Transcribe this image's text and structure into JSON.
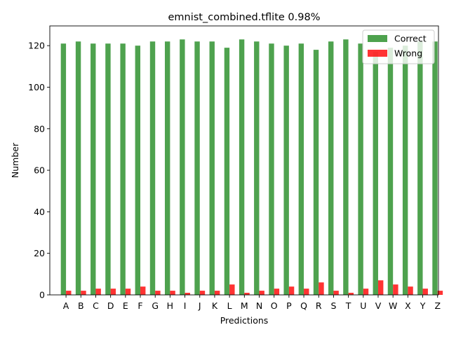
{
  "chart_data": {
    "type": "bar",
    "title": "emnist_combined.tflite  0.98%",
    "xlabel": "Predictions",
    "ylabel": "Number",
    "categories": [
      "A",
      "B",
      "C",
      "D",
      "E",
      "F",
      "G",
      "H",
      "I",
      "J",
      "K",
      "L",
      "M",
      "N",
      "O",
      "P",
      "Q",
      "R",
      "S",
      "T",
      "U",
      "V",
      "W",
      "X",
      "Y",
      "Z"
    ],
    "series": [
      {
        "name": "Correct",
        "color": "#228B22",
        "values": [
          121,
          122,
          121,
          121,
          121,
          120,
          122,
          122,
          123,
          122,
          122,
          119,
          123,
          122,
          121,
          120,
          121,
          118,
          122,
          123,
          121,
          117,
          119,
          120,
          122,
          122
        ]
      },
      {
        "name": "Wrong",
        "color": "#FF0000",
        "values": [
          2,
          2,
          3,
          3,
          3,
          4,
          2,
          2,
          1,
          2,
          2,
          5,
          1,
          2,
          3,
          4,
          3,
          6,
          2,
          1,
          3,
          7,
          5,
          4,
          3,
          2
        ]
      }
    ],
    "ylim": [
      0,
      129.5
    ],
    "yticks": [
      0,
      20,
      40,
      60,
      80,
      100,
      120
    ],
    "legend": {
      "position": "top-right",
      "entries": [
        "Correct",
        "Wrong"
      ]
    },
    "grid": false
  }
}
